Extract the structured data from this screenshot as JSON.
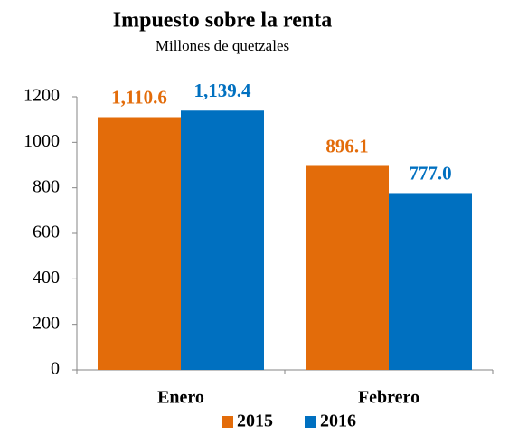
{
  "chart_data": {
    "type": "bar",
    "title": "Impuesto sobre la renta",
    "subtitle": "Millones de quetzales",
    "categories": [
      "Enero",
      "Febrero"
    ],
    "series": [
      {
        "name": "2015",
        "color": "#e36c0a",
        "values": [
          1110.6,
          896.1
        ],
        "value_labels": [
          "1,110.6",
          "896.1"
        ]
      },
      {
        "name": "2016",
        "color": "#0070c0",
        "values": [
          1139.4,
          777.0
        ],
        "value_labels": [
          "1,139.4",
          "777.0"
        ]
      }
    ],
    "ylim": [
      0,
      1200
    ],
    "yticks": [
      0,
      200,
      400,
      600,
      800,
      1000,
      1200
    ],
    "grid": false,
    "legend": "bottom"
  }
}
